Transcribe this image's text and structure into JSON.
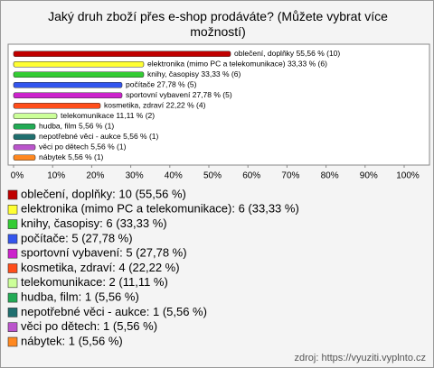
{
  "chart_data": {
    "type": "bar",
    "orientation": "horizontal",
    "title": "Jaký druh zboží přes e-shop prodáváte? (Můžete vybrat více možností)",
    "categories": [
      "oblečení, doplňky",
      "elektronika (mimo PC a telekomunikace)",
      "knihy, časopisy",
      "počítače",
      "sportovní vybavení",
      "kosmetika, zdraví",
      "telekomunikace",
      "hudba, film",
      "nepotřebné věci - aukce",
      "věci po dětech",
      "nábytek"
    ],
    "values": [
      55.56,
      33.33,
      33.33,
      27.78,
      27.78,
      22.22,
      11.11,
      5.56,
      5.56,
      5.56,
      5.56
    ],
    "value_labels": [
      "55,56 % (10)",
      "33,33 % (6)",
      "33,33 % (6)",
      "27,78 % (5)",
      "27,78 % (5)",
      "22,22 % (4)",
      "11,11 % (2)",
      "5,56 % (1)",
      "5,56 % (1)",
      "5,56 % (1)",
      "5,56 % (1)"
    ],
    "legend_labels": [
      "oblečení, doplňky: 10 (55,56 %)",
      "elektronika (mimo PC a telekomunikace): 6 (33,33 %)",
      "knihy, časopisy: 6 (33,33 %)",
      "počítače: 5 (27,78 %)",
      "sportovní vybavení: 5 (27,78 %)",
      "kosmetika, zdraví: 4 (22,22 %)",
      "telekomunikace: 2 (11,11 %)",
      "hudba, film: 1 (5,56 %)",
      "nepotřebné věci - aukce: 1 (5,56 %)",
      "věci po dětech: 1 (5,56 %)",
      "nábytek: 1 (5,56 %)"
    ],
    "colors": [
      "#c00000",
      "#ffff33",
      "#33cc33",
      "#3355ee",
      "#cc22cc",
      "#ff4d1a",
      "#ccff99",
      "#22aa55",
      "#1f6f6f",
      "#bb55cc",
      "#ff8820"
    ],
    "xlim": [
      0,
      100
    ],
    "xticks": [
      {
        "value": 0,
        "label": "0%"
      },
      {
        "value": 10,
        "label": "10%"
      },
      {
        "value": 20,
        "label": "20%"
      },
      {
        "value": 30,
        "label": "30%"
      },
      {
        "value": 40,
        "label": "40%"
      },
      {
        "value": 50,
        "label": "50%"
      },
      {
        "value": 60,
        "label": "60%"
      },
      {
        "value": 70,
        "label": "70%"
      },
      {
        "value": 80,
        "label": "80%"
      },
      {
        "value": 90,
        "label": "90%"
      },
      {
        "value": 100,
        "label": "100%"
      }
    ],
    "source": "zdroj: https://vyuziti.vyplnto.cz"
  }
}
